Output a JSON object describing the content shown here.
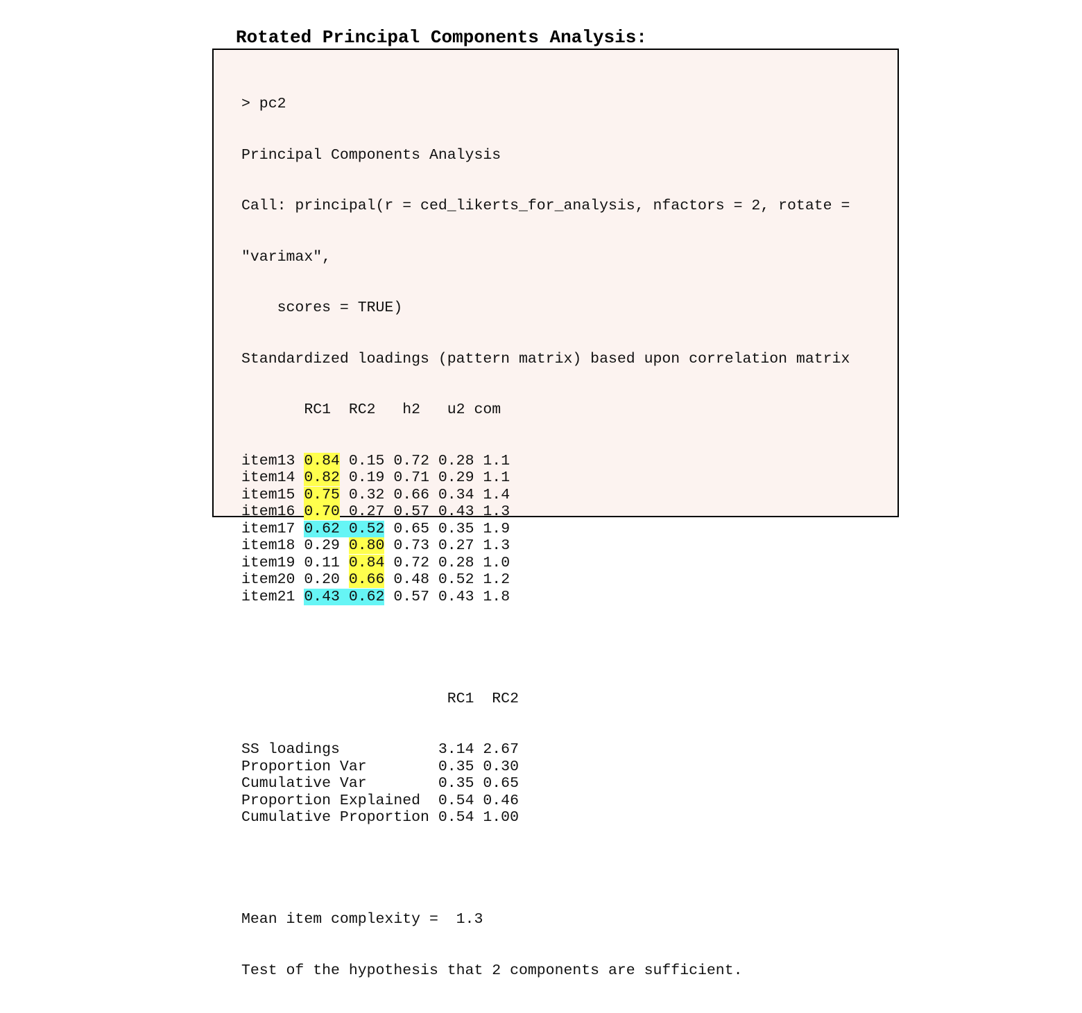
{
  "title": "Rotated Principal Components Analysis:",
  "colors": {
    "panel_background": "#fcf3f0",
    "highlight_yellow": "#ffff4d",
    "highlight_cyan": "#66f5f5"
  },
  "console": {
    "prompt_line": "> pc2",
    "analysis_title": "Principal Components Analysis",
    "call_line_1": "Call: principal(r = ced_likerts_for_analysis, nfactors = 2, rotate =",
    "call_line_2": "\"varimax\",",
    "call_line_3": "    scores = TRUE)",
    "loadings_heading": "Standardized loadings (pattern matrix) based upon correlation matrix",
    "loadings_header": "       RC1  RC2   h2   u2 com",
    "loadings": [
      {
        "item": "item13",
        "rc1": "0.84",
        "rc2": "0.15",
        "h2": "0.72",
        "u2": "0.28",
        "com": "1.1",
        "rc1_hl": "yellow",
        "rc2_hl": ""
      },
      {
        "item": "item14",
        "rc1": "0.82",
        "rc2": "0.19",
        "h2": "0.71",
        "u2": "0.29",
        "com": "1.1",
        "rc1_hl": "yellow",
        "rc2_hl": ""
      },
      {
        "item": "item15",
        "rc1": "0.75",
        "rc2": "0.32",
        "h2": "0.66",
        "u2": "0.34",
        "com": "1.4",
        "rc1_hl": "yellow",
        "rc2_hl": ""
      },
      {
        "item": "item16",
        "rc1": "0.70",
        "rc2": "0.27",
        "h2": "0.57",
        "u2": "0.43",
        "com": "1.3",
        "rc1_hl": "yellow",
        "rc2_hl": ""
      },
      {
        "item": "item17",
        "rc1": "0.62",
        "rc2": "0.52",
        "h2": "0.65",
        "u2": "0.35",
        "com": "1.9",
        "rc1_hl": "cyan",
        "rc2_hl": "cyan"
      },
      {
        "item": "item18",
        "rc1": "0.29",
        "rc2": "0.80",
        "h2": "0.73",
        "u2": "0.27",
        "com": "1.3",
        "rc1_hl": "",
        "rc2_hl": "yellow"
      },
      {
        "item": "item19",
        "rc1": "0.11",
        "rc2": "0.84",
        "h2": "0.72",
        "u2": "0.28",
        "com": "1.0",
        "rc1_hl": "",
        "rc2_hl": "yellow"
      },
      {
        "item": "item20",
        "rc1": "0.20",
        "rc2": "0.66",
        "h2": "0.48",
        "u2": "0.52",
        "com": "1.2",
        "rc1_hl": "",
        "rc2_hl": "yellow"
      },
      {
        "item": "item21",
        "rc1": "0.43",
        "rc2": "0.62",
        "h2": "0.57",
        "u2": "0.43",
        "com": "1.8",
        "rc1_hl": "cyan",
        "rc2_hl": "cyan"
      }
    ],
    "variance_header": "                       RC1  RC2",
    "variance_rows": [
      {
        "label": "SS loadings          ",
        "rc1": "3.14",
        "rc2": "2.67"
      },
      {
        "label": "Proportion Var       ",
        "rc1": "0.35",
        "rc2": "0.30"
      },
      {
        "label": "Cumulative Var       ",
        "rc1": "0.35",
        "rc2": "0.65"
      },
      {
        "label": "Proportion Explained ",
        "rc1": "0.54",
        "rc2": "0.46"
      },
      {
        "label": "Cumulative Proportion",
        "rc1": "0.54",
        "rc2": "1.00"
      }
    ],
    "complexity_line": "Mean item complexity =  1.3",
    "hypothesis_line": "Test of the hypothesis that 2 components are sufficient."
  }
}
